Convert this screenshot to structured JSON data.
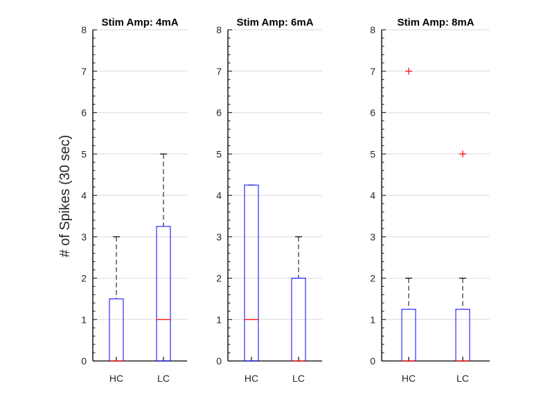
{
  "chart_data": {
    "type": "boxplot",
    "ylabel": "# of Spikes (30 sec)",
    "ylim": [
      0,
      8
    ],
    "yticks": [
      0,
      1,
      2,
      3,
      4,
      5,
      6,
      7,
      8
    ],
    "grid": "horizontal",
    "categories": [
      "HC",
      "LC"
    ],
    "colors": {
      "box": "#0000ff",
      "median": "#ff0000",
      "whisker": "#000000",
      "outlier": "#ff0000",
      "grid": "#e6e6e6",
      "axis": "#262626"
    },
    "panels": [
      {
        "title": "Stim Amp: 4mA",
        "boxes": [
          {
            "category": "HC",
            "min": 0,
            "q1": 0,
            "median": 0,
            "q3": 1.5,
            "max": 3,
            "outliers": []
          },
          {
            "category": "LC",
            "min": 0,
            "q1": 0,
            "median": 1,
            "q3": 3.25,
            "max": 5,
            "outliers": []
          }
        ]
      },
      {
        "title": "Stim Amp: 6mA",
        "boxes": [
          {
            "category": "HC",
            "min": 0,
            "q1": 0,
            "median": 1,
            "q3": 4.25,
            "max": 4.25,
            "outliers": []
          },
          {
            "category": "LC",
            "min": 0,
            "q1": 0,
            "median": 0,
            "q3": 2,
            "max": 3,
            "outliers": []
          }
        ]
      },
      {
        "title": "Stim Amp: 8mA",
        "boxes": [
          {
            "category": "HC",
            "min": 0,
            "q1": 0,
            "median": 0,
            "q3": 1.25,
            "max": 2,
            "outliers": [
              7
            ]
          },
          {
            "category": "LC",
            "min": 0,
            "q1": 0,
            "median": 0,
            "q3": 1.25,
            "max": 2,
            "outliers": [
              5
            ]
          }
        ]
      }
    ]
  }
}
